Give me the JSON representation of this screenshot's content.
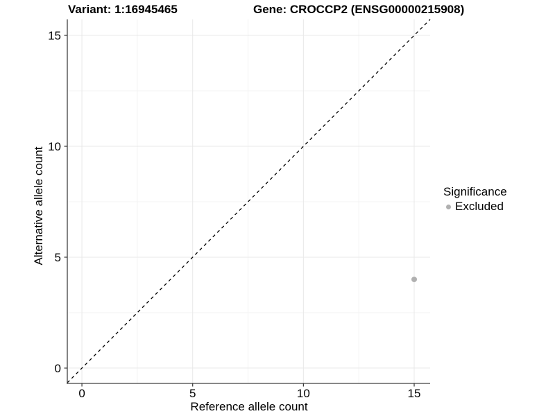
{
  "chart_data": {
    "type": "scatter",
    "title_left": "Variant: 1:16945465",
    "title_right": "Gene: CROCCP2 (ENSG00000215908)",
    "xlabel": "Reference allele count",
    "ylabel": "Alternative allele count",
    "xlim": [
      -0.66,
      15.72
    ],
    "ylim": [
      -0.69,
      15.72
    ],
    "x_ticks": [
      0,
      5,
      10,
      15
    ],
    "y_ticks": [
      0,
      5,
      10,
      15
    ],
    "x_minor_ticks": [
      2.5,
      7.5,
      12.5
    ],
    "y_minor_ticks": [
      2.5,
      7.5,
      12.5
    ],
    "grid": true,
    "points": [
      {
        "x": 15,
        "y": 4,
        "series": "Excluded"
      }
    ],
    "abline": {
      "slope": 1,
      "intercept": 0,
      "style": "dashed"
    },
    "legend": {
      "position": "right",
      "title": "Significance",
      "items": [
        {
          "label": "Excluded",
          "color": "#b0b0b0"
        }
      ]
    },
    "colors": {
      "point": "#b0b0b0",
      "abline": "#000000",
      "grid_major": "#e8e8e8",
      "grid_minor": "#f3f3f3",
      "axis_line": "#404040",
      "tick_mark": "#333333",
      "text": "#000000"
    }
  }
}
